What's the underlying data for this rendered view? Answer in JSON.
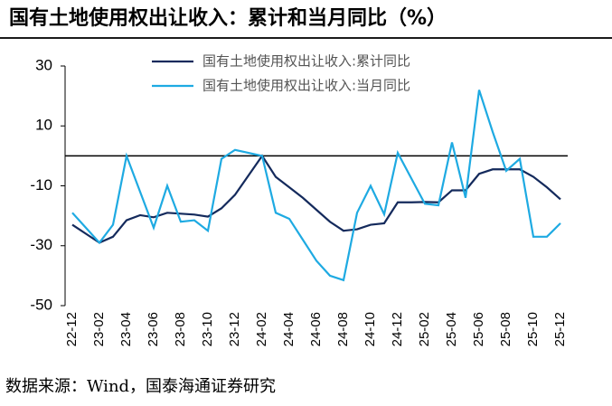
{
  "chart_data": {
    "type": "line",
    "title": "国有土地使用权出让收入：累计和当月同比（%）",
    "source": "数据来源：Wind，国泰海通证券研究",
    "categories": [
      "22-12",
      null,
      "23-02",
      null,
      "23-04",
      null,
      "23-06",
      null,
      "23-08",
      null,
      "23-10",
      null,
      "23-12",
      null,
      "24-02",
      null,
      "24-04",
      null,
      "24-06",
      null,
      "24-08",
      null,
      "24-10",
      null,
      "24-12",
      null,
      "25-02",
      null,
      "25-04",
      null,
      "25-06",
      null,
      "25-08",
      null,
      "25-10",
      null,
      "25-12"
    ],
    "series": [
      {
        "name": "国有土地使用权出让收入:累计同比",
        "color": "#142a5c",
        "values": [
          -23,
          -26,
          -29,
          -27,
          -21.5,
          -19.8,
          -20.5,
          -19,
          -19.3,
          -19.6,
          -20.3,
          -17.5,
          -13,
          -6.5,
          0,
          -7,
          -10.5,
          -14,
          -18,
          -22,
          -25,
          -24.5,
          -23,
          -22.5,
          -15.5,
          -15.5,
          -15.4,
          -15.5,
          -11.5,
          -11.5,
          -6,
          -4.5,
          -4.5,
          -4.5,
          -7,
          -10.5,
          -14.5
        ]
      },
      {
        "name": "国有土地使用权出让收入:当月同比",
        "color": "#1eaae2",
        "values": [
          -19,
          -24,
          -29,
          -23,
          0,
          -12,
          -24,
          -10,
          -22,
          -21.5,
          -25,
          -1,
          2,
          1,
          0,
          -19,
          -21,
          -28,
          -35,
          -40,
          -41.5,
          -19,
          -10,
          -19.5,
          1,
          -7.5,
          -16,
          -16.5,
          4.5,
          -14,
          22,
          8,
          -5,
          -1,
          -27,
          -27,
          -22.5
        ]
      }
    ],
    "ylim": [
      -50,
      30
    ],
    "yticks": [
      30,
      10,
      -10,
      -30,
      -50
    ],
    "legend": "top"
  }
}
